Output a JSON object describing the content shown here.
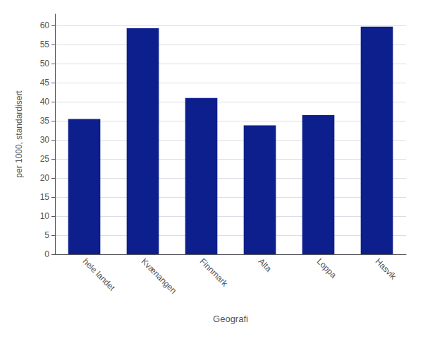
{
  "chart_data": {
    "type": "bar",
    "categories": [
      "hele landet",
      "Kvænangen",
      "Finnmark",
      "Alta",
      "Loppa",
      "Hasvik"
    ],
    "values": [
      35.5,
      59.3,
      41.0,
      33.8,
      36.5,
      59.7
    ],
    "color": "#0D1F8C",
    "xlabel": "Geografi",
    "ylabel": "per 1000, standardisert",
    "ylim": [
      0,
      63
    ],
    "yticks": [
      0,
      5,
      10,
      15,
      20,
      25,
      30,
      35,
      40,
      45,
      50,
      55,
      60
    ],
    "grid": true
  }
}
